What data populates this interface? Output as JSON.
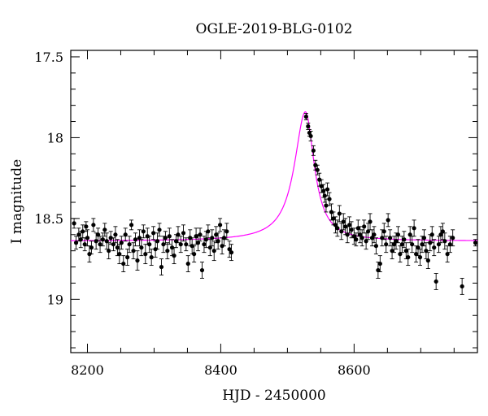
{
  "chart_data": {
    "type": "scatter",
    "title": "OGLE-2019-BLG-0102",
    "xlabel": "HJD - 2450000",
    "ylabel": "I magnitude",
    "xlim": [
      8175,
      8785
    ],
    "ylim": [
      19.33,
      17.46
    ],
    "y_inverted": true,
    "x_ticks": [
      8200,
      8400,
      8600
    ],
    "y_ticks": [
      17.5,
      18,
      18.5,
      19
    ],
    "x_tick_labels": [
      "8200",
      "8400",
      "8600"
    ],
    "y_tick_labels": [
      "17.5",
      "18",
      "18.5",
      "19"
    ],
    "colors": {
      "points": "#000000",
      "model": "#ff00ff",
      "frame": "#000000"
    },
    "model": {
      "t0": 8527,
      "baseline": 18.64,
      "amplitude": 0.8,
      "width_rise": 20,
      "width_fall": 16
    },
    "series": [
      {
        "points": [
          [
            8180,
            18.53,
            0.03
          ],
          [
            8183,
            18.65,
            0.04
          ],
          [
            8187,
            18.6,
            0.04
          ],
          [
            8190,
            18.63,
            0.05
          ],
          [
            8193,
            18.58,
            0.04
          ],
          [
            8196,
            18.66,
            0.04
          ],
          [
            8198,
            18.55,
            0.03
          ],
          [
            8200,
            18.62,
            0.05
          ],
          [
            8203,
            18.72,
            0.05
          ],
          [
            8206,
            18.68,
            0.04
          ],
          [
            8209,
            18.54,
            0.04
          ],
          [
            8213,
            18.64,
            0.05
          ],
          [
            8216,
            18.6,
            0.04
          ],
          [
            8219,
            18.66,
            0.05
          ],
          [
            8223,
            18.63,
            0.04
          ],
          [
            8226,
            18.57,
            0.04
          ],
          [
            8229,
            18.64,
            0.05
          ],
          [
            8232,
            18.7,
            0.05
          ],
          [
            8235,
            18.62,
            0.04
          ],
          [
            8239,
            18.66,
            0.04
          ],
          [
            8242,
            18.6,
            0.05
          ],
          [
            8245,
            18.68,
            0.05
          ],
          [
            8248,
            18.72,
            0.06
          ],
          [
            8251,
            18.65,
            0.04
          ],
          [
            8254,
            18.78,
            0.05
          ],
          [
            8257,
            18.6,
            0.04
          ],
          [
            8260,
            18.74,
            0.05
          ],
          [
            8263,
            18.66,
            0.05
          ],
          [
            8266,
            18.54,
            0.03
          ],
          [
            8269,
            18.7,
            0.05
          ],
          [
            8272,
            18.63,
            0.04
          ],
          [
            8275,
            18.76,
            0.06
          ],
          [
            8278,
            18.62,
            0.05
          ],
          [
            8281,
            18.68,
            0.05
          ],
          [
            8284,
            18.58,
            0.04
          ],
          [
            8287,
            18.72,
            0.06
          ],
          [
            8290,
            18.61,
            0.05
          ],
          [
            8293,
            18.66,
            0.05
          ],
          [
            8296,
            18.74,
            0.05
          ],
          [
            8299,
            18.59,
            0.04
          ],
          [
            8302,
            18.69,
            0.05
          ],
          [
            8305,
            18.64,
            0.05
          ],
          [
            8308,
            18.57,
            0.04
          ],
          [
            8311,
            18.8,
            0.05
          ],
          [
            8314,
            18.66,
            0.05
          ],
          [
            8317,
            18.62,
            0.04
          ],
          [
            8320,
            18.7,
            0.05
          ],
          [
            8323,
            18.61,
            0.05
          ],
          [
            8327,
            18.68,
            0.05
          ],
          [
            8330,
            18.73,
            0.05
          ],
          [
            8333,
            18.64,
            0.04
          ],
          [
            8336,
            18.6,
            0.05
          ],
          [
            8340,
            18.66,
            0.05
          ],
          [
            8344,
            18.59,
            0.05
          ],
          [
            8348,
            18.66,
            0.04
          ],
          [
            8351,
            18.78,
            0.05
          ],
          [
            8354,
            18.62,
            0.05
          ],
          [
            8357,
            18.67,
            0.05
          ],
          [
            8360,
            18.72,
            0.05
          ],
          [
            8363,
            18.61,
            0.05
          ],
          [
            8366,
            18.65,
            0.05
          ],
          [
            8369,
            18.6,
            0.04
          ],
          [
            8372,
            18.82,
            0.05
          ],
          [
            8375,
            18.66,
            0.05
          ],
          [
            8378,
            18.63,
            0.05
          ],
          [
            8381,
            18.58,
            0.04
          ],
          [
            8384,
            18.68,
            0.05
          ],
          [
            8387,
            18.62,
            0.05
          ],
          [
            8390,
            18.7,
            0.06
          ],
          [
            8393,
            18.6,
            0.05
          ],
          [
            8396,
            18.64,
            0.05
          ],
          [
            8399,
            18.54,
            0.04
          ],
          [
            8402,
            18.67,
            0.05
          ],
          [
            8405,
            18.62,
            0.05
          ],
          [
            8409,
            18.58,
            0.05
          ],
          [
            8413,
            18.69,
            0.05
          ],
          [
            8416,
            18.71,
            0.05
          ],
          [
            8528,
            17.87,
            0.02
          ],
          [
            8531,
            17.93,
            0.02
          ],
          [
            8533,
            17.97,
            0.02
          ],
          [
            8535,
            17.99,
            0.03
          ],
          [
            8539,
            18.08,
            0.03
          ],
          [
            8542,
            18.17,
            0.03
          ],
          [
            8545,
            18.2,
            0.03
          ],
          [
            8548,
            18.26,
            0.04
          ],
          [
            8551,
            18.3,
            0.04
          ],
          [
            8554,
            18.33,
            0.04
          ],
          [
            8556,
            18.36,
            0.04
          ],
          [
            8558,
            18.42,
            0.04
          ],
          [
            8560,
            18.32,
            0.04
          ],
          [
            8563,
            18.38,
            0.04
          ],
          [
            8566,
            18.46,
            0.05
          ],
          [
            8569,
            18.5,
            0.04
          ],
          [
            8572,
            18.54,
            0.05
          ],
          [
            8575,
            18.56,
            0.05
          ],
          [
            8578,
            18.47,
            0.05
          ],
          [
            8581,
            18.58,
            0.05
          ],
          [
            8584,
            18.52,
            0.05
          ],
          [
            8587,
            18.55,
            0.05
          ],
          [
            8590,
            18.6,
            0.05
          ],
          [
            8593,
            18.54,
            0.05
          ],
          [
            8596,
            18.57,
            0.05
          ],
          [
            8600,
            18.61,
            0.05
          ],
          [
            8603,
            18.63,
            0.04
          ],
          [
            8606,
            18.56,
            0.05
          ],
          [
            8609,
            18.6,
            0.05
          ],
          [
            8612,
            18.62,
            0.05
          ],
          [
            8615,
            18.55,
            0.04
          ],
          [
            8618,
            18.64,
            0.05
          ],
          [
            8621,
            18.58,
            0.05
          ],
          [
            8624,
            18.52,
            0.05
          ],
          [
            8627,
            18.62,
            0.05
          ],
          [
            8630,
            18.6,
            0.05
          ],
          [
            8633,
            18.67,
            0.05
          ],
          [
            8636,
            18.82,
            0.05
          ],
          [
            8639,
            18.78,
            0.05
          ],
          [
            8642,
            18.62,
            0.05
          ],
          [
            8645,
            18.58,
            0.05
          ],
          [
            8648,
            18.66,
            0.05
          ],
          [
            8651,
            18.51,
            0.04
          ],
          [
            8654,
            18.62,
            0.05
          ],
          [
            8657,
            18.7,
            0.05
          ],
          [
            8660,
            18.66,
            0.05
          ],
          [
            8663,
            18.64,
            0.05
          ],
          [
            8666,
            18.6,
            0.05
          ],
          [
            8669,
            18.72,
            0.05
          ],
          [
            8672,
            18.66,
            0.05
          ],
          [
            8675,
            18.63,
            0.05
          ],
          [
            8678,
            18.7,
            0.05
          ],
          [
            8681,
            18.74,
            0.05
          ],
          [
            8684,
            18.6,
            0.05
          ],
          [
            8687,
            18.66,
            0.05
          ],
          [
            8690,
            18.56,
            0.05
          ],
          [
            8693,
            18.72,
            0.05
          ],
          [
            8696,
            18.68,
            0.05
          ],
          [
            8699,
            18.74,
            0.05
          ],
          [
            8702,
            18.66,
            0.05
          ],
          [
            8705,
            18.62,
            0.05
          ],
          [
            8708,
            18.7,
            0.05
          ],
          [
            8711,
            18.76,
            0.05
          ],
          [
            8714,
            18.65,
            0.05
          ],
          [
            8717,
            18.6,
            0.05
          ],
          [
            8720,
            18.68,
            0.05
          ],
          [
            8723,
            18.89,
            0.05
          ],
          [
            8727,
            18.66,
            0.05
          ],
          [
            8730,
            18.6,
            0.05
          ],
          [
            8733,
            18.58,
            0.05
          ],
          [
            8736,
            18.64,
            0.05
          ],
          [
            8740,
            18.72,
            0.05
          ],
          [
            8744,
            18.66,
            0.05
          ],
          [
            8748,
            18.62,
            0.05
          ],
          [
            8762,
            18.92,
            0.05
          ],
          [
            8782,
            18.65,
            0.02
          ]
        ]
      }
    ]
  }
}
